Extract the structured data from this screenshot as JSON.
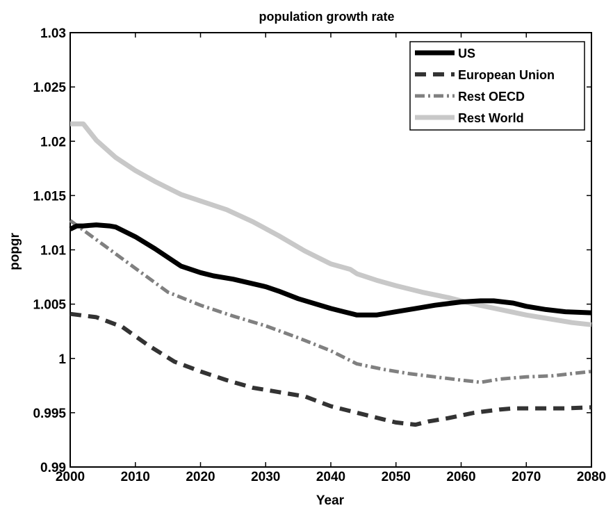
{
  "chart_data": {
    "type": "line",
    "title": "population growth rate",
    "xlabel": "Year",
    "ylabel": "popgr",
    "xlim": [
      2000,
      2080
    ],
    "ylim": [
      0.99,
      1.03
    ],
    "xticks": [
      2000,
      2010,
      2020,
      2030,
      2040,
      2050,
      2060,
      2070,
      2080
    ],
    "xtick_labels": [
      "2000",
      "2010",
      "2020",
      "2030",
      "2040",
      "2050",
      "2060",
      "2070",
      "2080"
    ],
    "yticks": [
      0.99,
      0.995,
      1.0,
      1.005,
      1.01,
      1.015,
      1.02,
      1.025,
      1.03
    ],
    "ytick_labels": [
      "0.99",
      "0.995",
      "1",
      "1.005",
      "1.01",
      "1.015",
      "1.02",
      "1.025",
      "1.03"
    ],
    "grid": false,
    "legend_position": "top-right",
    "series": [
      {
        "name": "US",
        "color": "#000000",
        "style": "solid",
        "x": [
          2000,
          2001,
          2002,
          2004,
          2006,
          2007,
          2010,
          2013,
          2017,
          2020,
          2022,
          2025,
          2030,
          2032,
          2035,
          2040,
          2042,
          2044,
          2047,
          2050,
          2053,
          2056,
          2060,
          2063,
          2065,
          2068,
          2070,
          2073,
          2076,
          2080
        ],
        "y": [
          1.0119,
          1.0122,
          1.0122,
          1.0123,
          1.0122,
          1.0121,
          1.0112,
          1.0101,
          1.0085,
          1.0079,
          1.0076,
          1.0073,
          1.0066,
          1.0062,
          1.0055,
          1.0046,
          1.0043,
          1.004,
          1.004,
          1.0043,
          1.0046,
          1.0049,
          1.0052,
          1.0053,
          1.0053,
          1.0051,
          1.0048,
          1.0045,
          1.0043,
          1.0042
        ]
      },
      {
        "name": "European Union",
        "color": "#333333",
        "style": "dashed",
        "x": [
          2000,
          2004,
          2008,
          2012,
          2016,
          2020,
          2024,
          2028,
          2032,
          2036,
          2040,
          2044,
          2048,
          2050,
          2053,
          2055,
          2058,
          2062,
          2066,
          2068,
          2072,
          2076,
          2080
        ],
        "y": [
          1.0041,
          1.0038,
          1.0029,
          1.0012,
          0.9997,
          0.9988,
          0.998,
          0.9973,
          0.9969,
          0.9965,
          0.9956,
          0.995,
          0.9944,
          0.9941,
          0.9939,
          0.9942,
          0.9945,
          0.995,
          0.9953,
          0.9954,
          0.9954,
          0.9954,
          0.9955
        ]
      },
      {
        "name": "Rest OECD",
        "color": "#808080",
        "style": "dash-dot",
        "x": [
          2000,
          2005,
          2010,
          2015,
          2020,
          2025,
          2030,
          2035,
          2040,
          2044,
          2048,
          2052,
          2056,
          2060,
          2063,
          2066,
          2070,
          2074,
          2077,
          2080
        ],
        "y": [
          1.0127,
          1.0105,
          1.0083,
          1.0061,
          1.0049,
          1.0039,
          1.003,
          1.0019,
          1.0007,
          0.9995,
          0.999,
          0.9986,
          0.9983,
          0.998,
          0.9978,
          0.9981,
          0.9983,
          0.9984,
          0.9986,
          0.9988
        ]
      },
      {
        "name": "Rest World",
        "color": "#c8c8c8",
        "style": "solid",
        "x": [
          2000,
          2002,
          2004,
          2007,
          2010,
          2013,
          2017,
          2020,
          2024,
          2028,
          2032,
          2036,
          2040,
          2043,
          2044,
          2047,
          2050,
          2054,
          2058,
          2062,
          2066,
          2070,
          2074,
          2077,
          2080
        ],
        "y": [
          1.0216,
          1.0216,
          1.0201,
          1.0185,
          1.0173,
          1.0163,
          1.0151,
          1.0145,
          1.0137,
          1.0126,
          1.0113,
          1.0099,
          1.0087,
          1.0082,
          1.0078,
          1.0072,
          1.0067,
          1.0061,
          1.0056,
          1.005,
          1.0045,
          1.004,
          1.0036,
          1.0033,
          1.0031
        ]
      }
    ]
  }
}
